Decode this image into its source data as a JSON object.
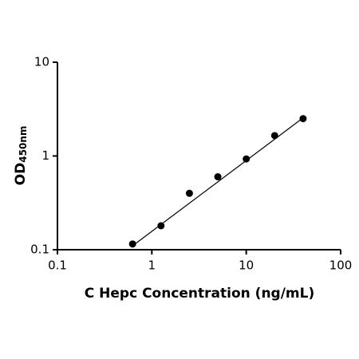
{
  "chart_data": {
    "type": "scatter",
    "x_label": "C Hepc Concentration (ng/mL)",
    "y_label": "OD",
    "y_label_subscript": "450nm",
    "x": [
      0.625,
      1.25,
      2.5,
      5,
      10,
      20,
      40
    ],
    "values": [
      0.115,
      0.18,
      0.4,
      0.6,
      0.93,
      1.65,
      2.5
    ],
    "color": "#000000",
    "trendline": {
      "x": [
        0.625,
        40
      ],
      "values": [
        0.11,
        2.55
      ]
    },
    "xscale": "log",
    "yscale": "log",
    "xlim": [
      0.1,
      100
    ],
    "ylim": [
      0.1,
      10
    ],
    "xticks": [
      0.1,
      1,
      10,
      100
    ],
    "yticks": [
      0.1,
      1,
      10
    ],
    "grid": false
  }
}
